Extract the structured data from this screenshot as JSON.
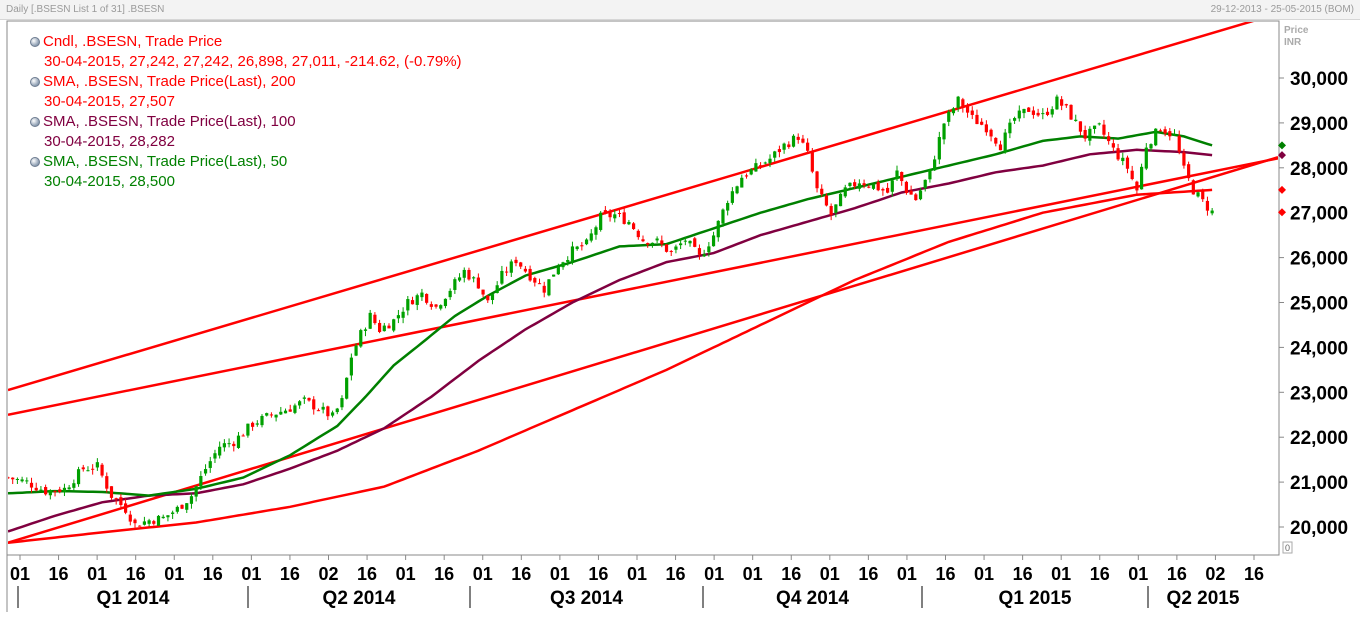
{
  "window": {
    "title": "Daily [.BSESN List 1 of 31] .BSESN",
    "date_range": "29-12-2013 - 25-05-2015 (BOM)"
  },
  "axis_header": {
    "line1": "Price",
    "line2": "INR"
  },
  "colors": {
    "up_candle": "#00a000",
    "down_candle": "#ff0000",
    "sma200": "#ff0000",
    "sma100": "#800040",
    "sma50": "#008000",
    "channel": "#ff0000",
    "legend_text_red": "#ff0000",
    "legend_text_purple": "#800040",
    "legend_text_green": "#008000"
  },
  "legend": [
    {
      "label": "Cndl, .BSESN, Trade Price",
      "value": "30-04-2015, 27,242, 27,242, 26,898, 27,011, -214.62, (-0.79%)",
      "color": "#ff0000"
    },
    {
      "label": "SMA, .BSESN, Trade Price(Last),  200",
      "value": "30-04-2015, 27,507",
      "color": "#ff0000"
    },
    {
      "label": "SMA, .BSESN, Trade Price(Last),  100",
      "value": "30-04-2015, 28,282",
      "color": "#800040"
    },
    {
      "label": "SMA, .BSESN, Trade Price(Last),  50",
      "value": "30-04-2015, 28,500",
      "color": "#008000"
    }
  ],
  "chart_data": {
    "type": "candlestick",
    "ylim": [
      19600,
      30900
    ],
    "y_ticks": [
      "20,000",
      "21,000",
      "22,000",
      "23,000",
      "24,000",
      "25,000",
      "26,000",
      "27,000",
      "28,000",
      "29,000",
      "30,000"
    ],
    "y_zero_label": "0",
    "x_tick_labels": [
      "01",
      "16",
      "01",
      "16",
      "01",
      "16",
      "01",
      "16",
      "02",
      "16",
      "01",
      "16",
      "01",
      "16",
      "01",
      "16",
      "01",
      "16",
      "01",
      "01",
      "16",
      "01",
      "16",
      "01",
      "16",
      "01",
      "16",
      "01",
      "16",
      "01",
      "16",
      "02",
      "16"
    ],
    "quarter_labels": [
      "Q1 2014",
      "Q2 2014",
      "Q3 2014",
      "Q4 2014",
      "Q1 2015",
      "Q2 2015"
    ],
    "last_values": {
      "sma50": 28500,
      "sma100": 28282,
      "sma200": 27507
    },
    "close_series": [
      [
        0,
        21100
      ],
      [
        4,
        21000
      ],
      [
        8,
        20800
      ],
      [
        12,
        20850
      ],
      [
        16,
        21300
      ],
      [
        19,
        21350
      ],
      [
        22,
        20700
      ],
      [
        25,
        20400
      ],
      [
        27,
        20050
      ],
      [
        30,
        20150
      ],
      [
        33,
        20200
      ],
      [
        36,
        20400
      ],
      [
        39,
        20700
      ],
      [
        42,
        21300
      ],
      [
        45,
        21800
      ],
      [
        48,
        21900
      ],
      [
        52,
        22300
      ],
      [
        56,
        22500
      ],
      [
        60,
        22650
      ],
      [
        63,
        22800
      ],
      [
        66,
        22650
      ],
      [
        69,
        22450
      ],
      [
        71,
        22800
      ],
      [
        73,
        23800
      ],
      [
        75,
        24300
      ],
      [
        77,
        24700
      ],
      [
        79,
        24400
      ],
      [
        82,
        24600
      ],
      [
        85,
        25000
      ],
      [
        88,
        25200
      ],
      [
        91,
        24900
      ],
      [
        94,
        25300
      ],
      [
        97,
        25700
      ],
      [
        100,
        25400
      ],
      [
        102,
        25000
      ],
      [
        105,
        25600
      ],
      [
        108,
        25950
      ],
      [
        111,
        25600
      ],
      [
        114,
        25300
      ],
      [
        117,
        25850
      ],
      [
        120,
        26150
      ],
      [
        123,
        26300
      ],
      [
        126,
        26900
      ],
      [
        129,
        26950
      ],
      [
        132,
        26800
      ],
      [
        135,
        26400
      ],
      [
        138,
        26350
      ],
      [
        141,
        26100
      ],
      [
        144,
        26400
      ],
      [
        147,
        26000
      ],
      [
        150,
        26500
      ],
      [
        153,
        27300
      ],
      [
        156,
        27800
      ],
      [
        159,
        28000
      ],
      [
        162,
        28200
      ],
      [
        165,
        28500
      ],
      [
        168,
        28700
      ],
      [
        170,
        28300
      ],
      [
        172,
        27500
      ],
      [
        175,
        26950
      ],
      [
        178,
        27500
      ],
      [
        181,
        27700
      ],
      [
        184,
        27600
      ],
      [
        187,
        27450
      ],
      [
        189,
        27900
      ],
      [
        191,
        27500
      ],
      [
        193,
        27300
      ],
      [
        196,
        27900
      ],
      [
        199,
        29000
      ],
      [
        202,
        29500
      ],
      [
        205,
        29100
      ],
      [
        208,
        28900
      ],
      [
        211,
        28500
      ],
      [
        214,
        29100
      ],
      [
        217,
        29300
      ],
      [
        220,
        29150
      ],
      [
        223,
        29500
      ],
      [
        225,
        29300
      ],
      [
        227,
        29000
      ],
      [
        229,
        28700
      ],
      [
        232,
        28900
      ],
      [
        235,
        28400
      ],
      [
        238,
        28000
      ],
      [
        240,
        27500
      ],
      [
        242,
        28500
      ],
      [
        245,
        28900
      ],
      [
        248,
        28700
      ],
      [
        250,
        27950
      ],
      [
        252,
        27500
      ],
      [
        254,
        27242
      ],
      [
        256,
        27011
      ]
    ],
    "sma50": [
      [
        0,
        20750
      ],
      [
        10,
        20800
      ],
      [
        20,
        20780
      ],
      [
        30,
        20700
      ],
      [
        40,
        20850
      ],
      [
        50,
        21100
      ],
      [
        60,
        21600
      ],
      [
        70,
        22250
      ],
      [
        76,
        22900
      ],
      [
        82,
        23600
      ],
      [
        88,
        24100
      ],
      [
        95,
        24700
      ],
      [
        102,
        25150
      ],
      [
        110,
        25600
      ],
      [
        120,
        25900
      ],
      [
        130,
        26250
      ],
      [
        140,
        26300
      ],
      [
        150,
        26650
      ],
      [
        160,
        27000
      ],
      [
        170,
        27300
      ],
      [
        180,
        27550
      ],
      [
        190,
        27800
      ],
      [
        200,
        28050
      ],
      [
        210,
        28300
      ],
      [
        220,
        28600
      ],
      [
        228,
        28700
      ],
      [
        236,
        28650
      ],
      [
        244,
        28800
      ],
      [
        250,
        28700
      ],
      [
        256,
        28500
      ]
    ],
    "sma100": [
      [
        0,
        19900
      ],
      [
        10,
        20250
      ],
      [
        20,
        20550
      ],
      [
        30,
        20700
      ],
      [
        40,
        20750
      ],
      [
        50,
        20950
      ],
      [
        60,
        21300
      ],
      [
        70,
        21700
      ],
      [
        80,
        22200
      ],
      [
        90,
        22900
      ],
      [
        100,
        23700
      ],
      [
        110,
        24400
      ],
      [
        120,
        25000
      ],
      [
        130,
        25500
      ],
      [
        140,
        25900
      ],
      [
        150,
        26100
      ],
      [
        160,
        26500
      ],
      [
        170,
        26800
      ],
      [
        180,
        27100
      ],
      [
        190,
        27450
      ],
      [
        200,
        27650
      ],
      [
        210,
        27900
      ],
      [
        220,
        28050
      ],
      [
        230,
        28300
      ],
      [
        240,
        28400
      ],
      [
        250,
        28350
      ],
      [
        256,
        28282
      ]
    ],
    "sma200": [
      [
        0,
        19650
      ],
      [
        20,
        19880
      ],
      [
        40,
        20100
      ],
      [
        60,
        20450
      ],
      [
        80,
        20900
      ],
      [
        100,
        21700
      ],
      [
        120,
        22600
      ],
      [
        140,
        23500
      ],
      [
        160,
        24500
      ],
      [
        180,
        25500
      ],
      [
        200,
        26350
      ],
      [
        220,
        27000
      ],
      [
        240,
        27400
      ],
      [
        256,
        27507
      ]
    ],
    "trendlines": [
      {
        "name": "upper-channel",
        "p1": [
          0,
          23050
        ],
        "p2": [
          256,
          31000
        ]
      },
      {
        "name": "lower-channel",
        "p1": [
          0,
          22500
        ],
        "p2": [
          260,
          28000
        ]
      },
      {
        "name": "base-line",
        "p1": [
          0,
          19650
        ],
        "p2": [
          250,
          27600
        ]
      }
    ]
  }
}
